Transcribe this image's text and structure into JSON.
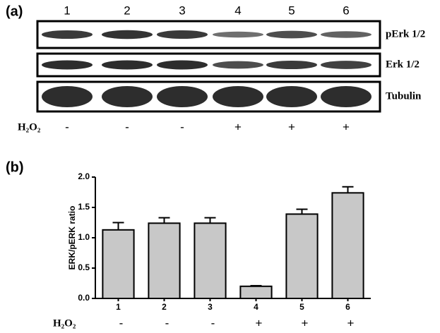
{
  "panel_a": {
    "label": "(a)",
    "lanes": [
      "1",
      "2",
      "3",
      "4",
      "5",
      "6"
    ],
    "blots": [
      "pErk 1/2",
      "Erk 1/2",
      "Tubulin"
    ],
    "treatment_label": "H₂O₂",
    "treatment": [
      "-",
      "-",
      "-",
      "+",
      "+",
      "+"
    ]
  },
  "chart_data": {
    "type": "bar",
    "panel_label": "(b)",
    "y_label": "ERK/pERK ratio",
    "categories": [
      "1",
      "2",
      "3",
      "4",
      "5",
      "6"
    ],
    "values": [
      1.13,
      1.24,
      1.24,
      0.2,
      1.39,
      1.74
    ],
    "errors": [
      0.12,
      0.09,
      0.09,
      0.01,
      0.08,
      0.1
    ],
    "color": "#c8c8c8",
    "ylim": [
      0,
      2.0
    ],
    "yticks": [
      {
        "value": 0,
        "label": "0.0"
      },
      {
        "value": 0.5,
        "label": "0.5"
      },
      {
        "value": 1,
        "label": "1.0"
      },
      {
        "value": 1.5,
        "label": "1.5"
      },
      {
        "value": 2,
        "label": "2.0"
      }
    ],
    "treatment_label": "H₂O₂",
    "treatment": [
      "-",
      "-",
      "-",
      "+",
      "+",
      "+"
    ]
  }
}
